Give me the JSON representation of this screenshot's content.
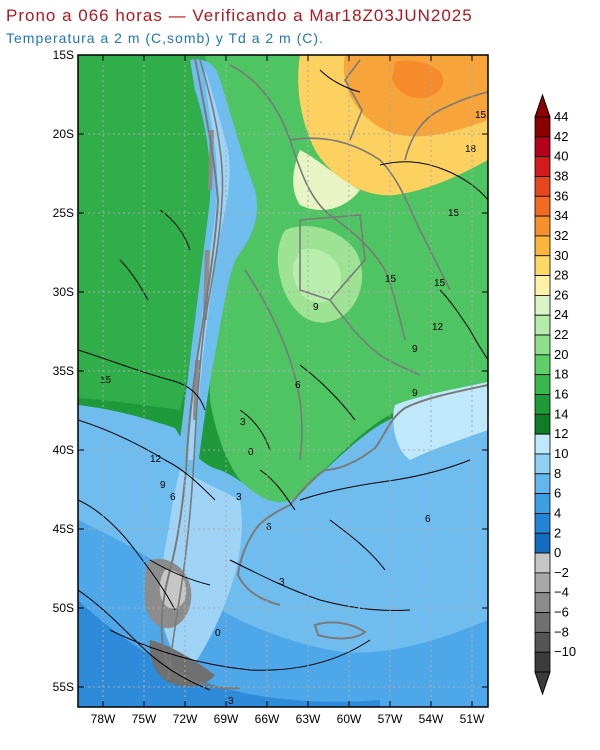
{
  "header": {
    "title": "Prono a 066 horas — Verificando a Mar18Z03JUN2025",
    "subtitle": "Temperatura a 2 m (C,somb) y Td a 2 m (C)."
  },
  "map": {
    "lat_labels": [
      "15S",
      "20S",
      "25S",
      "30S",
      "35S",
      "40S",
      "45S",
      "50S",
      "55S"
    ],
    "lon_labels": [
      "78W",
      "75W",
      "72W",
      "69W",
      "66W",
      "63W",
      "60W",
      "57W",
      "54W",
      "51W"
    ],
    "contour_labels": [
      "15",
      "18",
      "15",
      "15",
      "15",
      "9",
      "12",
      "9",
      "9",
      "15",
      "12",
      "9",
      "6",
      "3",
      "6",
      "6",
      "3",
      "0",
      "3",
      "6",
      "3",
      "0"
    ]
  },
  "colorbar": {
    "labels": [
      "44",
      "42",
      "40",
      "38",
      "36",
      "34",
      "32",
      "30",
      "28",
      "26",
      "24",
      "22",
      "20",
      "18",
      "16",
      "14",
      "12",
      "10",
      "8",
      "6",
      "4",
      "2",
      "0",
      "−2",
      "−4",
      "−6",
      "−8",
      "−10"
    ],
    "colors": [
      "#8b0000",
      "#b3001b",
      "#d41a1a",
      "#e8461e",
      "#f26b21",
      "#f78f2a",
      "#fab53c",
      "#fcd864",
      "#fff2a6",
      "#d9f5c7",
      "#b5ecab",
      "#8ee08c",
      "#5fcf6a",
      "#39b84e",
      "#1e9b37",
      "#0c7e25",
      "#bfe9fb",
      "#8fd1f5",
      "#63b7ee",
      "#3e9ee5",
      "#2485d6",
      "#136ec1",
      "#c6c6c6",
      "#a9a9a9",
      "#8c8c8c",
      "#707070",
      "#555555",
      "#3b3b3b"
    ]
  }
}
